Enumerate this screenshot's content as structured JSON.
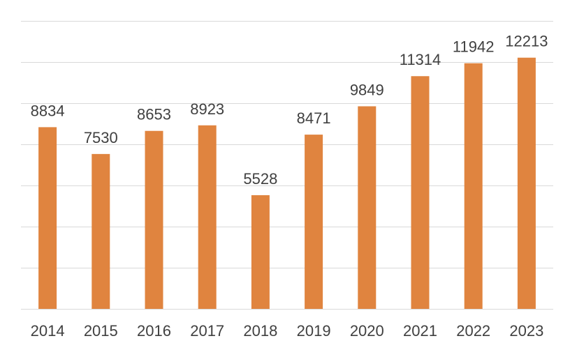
{
  "chart_data": {
    "type": "bar",
    "categories": [
      "2014",
      "2015",
      "2016",
      "2017",
      "2018",
      "2019",
      "2020",
      "2021",
      "2022",
      "2023"
    ],
    "values": [
      8834,
      7530,
      8653,
      8923,
      5528,
      8471,
      9849,
      11314,
      11942,
      12213
    ],
    "title": "",
    "xlabel": "",
    "ylabel": "",
    "ylim": [
      0,
      14000
    ],
    "y_tick_step": 2000,
    "y_axis_labels_visible": false,
    "data_labels": true,
    "grid": true,
    "legend": "none",
    "bar_color": "#E0843F",
    "grid_color": "#D9D9D9",
    "text_color": "#404040"
  }
}
